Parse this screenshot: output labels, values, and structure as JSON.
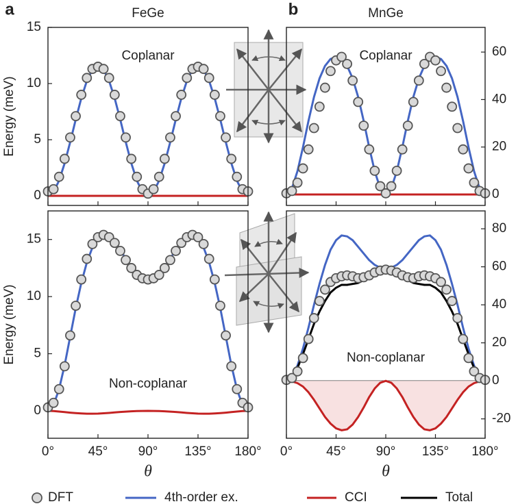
{
  "chart_data": [
    {
      "type": "line",
      "panel_label": "a",
      "title": "FeGe",
      "annotation": "Coplanar",
      "ylabel": "Energy (meV)",
      "y_axis_side": "left",
      "x": [
        0,
        5,
        10,
        15,
        20,
        25,
        30,
        35,
        40,
        45,
        50,
        55,
        60,
        65,
        70,
        75,
        80,
        85,
        90,
        95,
        100,
        105,
        110,
        115,
        120,
        125,
        130,
        135,
        140,
        145,
        150,
        155,
        160,
        165,
        170,
        175,
        180
      ],
      "xlim": [
        0,
        180
      ],
      "xticks": [
        0,
        45,
        90,
        135,
        180
      ],
      "ylim": [
        -0.85,
        15
      ],
      "yticks": [
        0,
        5,
        10,
        15
      ],
      "series": [
        {
          "name": "DFT",
          "color": "#d9d9d9",
          "edge_color": "#555555",
          "marker": "circle",
          "values": [
            0.4,
            0.6,
            1.7,
            3.3,
            5.2,
            7.1,
            9.0,
            10.5,
            11.3,
            11.5,
            11.3,
            10.5,
            9.0,
            7.1,
            5.2,
            3.3,
            1.7,
            0.6,
            0.2,
            0.6,
            1.7,
            3.3,
            5.2,
            7.1,
            9.0,
            10.5,
            11.3,
            11.5,
            11.3,
            10.5,
            9.0,
            7.1,
            5.2,
            3.3,
            1.7,
            0.6,
            0.4
          ]
        },
        {
          "name": "4th-order ex.",
          "color": "#4466c4",
          "values": [
            0,
            0.35,
            1.36,
            2.9,
            4.79,
            6.81,
            8.7,
            10.24,
            11.25,
            11.6,
            11.25,
            10.24,
            8.7,
            6.81,
            4.79,
            2.9,
            1.36,
            0.35,
            0,
            0.35,
            1.36,
            2.9,
            4.79,
            6.81,
            8.7,
            10.24,
            11.25,
            11.6,
            11.25,
            10.24,
            8.7,
            6.81,
            4.79,
            2.9,
            1.36,
            0.35,
            0
          ]
        },
        {
          "name": "CCI",
          "color": "#c42222",
          "values": [
            0,
            0,
            0,
            0,
            0,
            0,
            0,
            0,
            0,
            0,
            0,
            0,
            0,
            0,
            0,
            0,
            0,
            0,
            0,
            0,
            0,
            0,
            0,
            0,
            0,
            0,
            0,
            0,
            0,
            0,
            0,
            0,
            0,
            0,
            0,
            0,
            0
          ]
        }
      ]
    },
    {
      "type": "line",
      "panel_label": "b",
      "title": "MnGe",
      "annotation": "Coplanar",
      "y_axis_side": "right",
      "x": [
        0,
        5,
        10,
        15,
        20,
        25,
        30,
        35,
        40,
        45,
        50,
        55,
        60,
        65,
        70,
        75,
        80,
        85,
        90,
        95,
        100,
        105,
        110,
        115,
        120,
        125,
        130,
        135,
        140,
        145,
        150,
        155,
        160,
        165,
        170,
        175,
        180
      ],
      "xlim": [
        0,
        180
      ],
      "xticks": [
        0,
        45,
        90,
        135,
        180
      ],
      "ylim": [
        -4.6,
        70.4
      ],
      "yticks": [
        0,
        20,
        40,
        60
      ],
      "series": [
        {
          "name": "DFT",
          "color": "#d9d9d9",
          "edge_color": "#555555",
          "marker": "circle",
          "values": [
            0.5,
            1.5,
            5,
            11,
            19,
            28,
            37,
            45,
            52,
            56.5,
            58,
            55,
            48,
            39,
            29,
            19,
            10,
            3.5,
            0.5,
            3.5,
            10,
            19,
            29,
            39,
            48,
            55,
            58,
            56.5,
            52,
            45,
            37,
            28,
            19,
            11,
            5,
            1.5,
            0.5
          ]
        },
        {
          "name": "4th-order ex.",
          "color": "#4466c4",
          "values": [
            0,
            2.6,
            9.8,
            19.9,
            31,
            41.1,
            48.9,
            54.2,
            57.1,
            58,
            57.1,
            54.2,
            48.9,
            41.1,
            31,
            19.9,
            9.8,
            2.6,
            0,
            2.6,
            9.8,
            19.9,
            31,
            41.1,
            48.9,
            54.2,
            57.1,
            58,
            57.1,
            54.2,
            48.9,
            41.1,
            31,
            19.9,
            9.8,
            2.6,
            0
          ]
        },
        {
          "name": "CCI",
          "color": "#c42222",
          "values": [
            0,
            0,
            0,
            0,
            0,
            0,
            0,
            0,
            0,
            0,
            0,
            0,
            0,
            0,
            0,
            0,
            0,
            0,
            0,
            0,
            0,
            0,
            0,
            0,
            0,
            0,
            0,
            0,
            0,
            0,
            0,
            0,
            0,
            0,
            0,
            0,
            0
          ]
        }
      ]
    },
    {
      "type": "line",
      "annotation": "Non-coplanar",
      "ylabel": "Energy (meV)",
      "xlabel": "θ",
      "y_axis_side": "left",
      "x": [
        0,
        5,
        10,
        15,
        20,
        25,
        30,
        35,
        40,
        45,
        50,
        55,
        60,
        65,
        70,
        75,
        80,
        85,
        90,
        95,
        100,
        105,
        110,
        115,
        120,
        125,
        130,
        135,
        140,
        145,
        150,
        155,
        160,
        165,
        170,
        175,
        180
      ],
      "xlim": [
        0,
        180
      ],
      "xticks": [
        {
          "value": 0,
          "label": "0°"
        },
        {
          "value": 45,
          "label": "45°"
        },
        {
          "value": 90,
          "label": "90°"
        },
        {
          "value": 135,
          "label": "135°"
        },
        {
          "value": 180,
          "label": "180°"
        }
      ],
      "ylim": [
        -2.4,
        17.5
      ],
      "yticks": [
        0,
        5,
        10,
        15
      ],
      "series": [
        {
          "name": "DFT",
          "color": "#d9d9d9",
          "edge_color": "#555555",
          "marker": "circle",
          "values": [
            0.3,
            0.7,
            1.9,
            3.9,
            6.6,
            9.2,
            11.5,
            13.3,
            14.6,
            15.2,
            15.4,
            15.2,
            14.7,
            14.0,
            13.2,
            12.5,
            11.9,
            11.6,
            11.5,
            11.6,
            11.9,
            12.5,
            13.2,
            14.0,
            14.7,
            15.2,
            15.4,
            15.2,
            14.6,
            13.3,
            11.5,
            9.2,
            6.6,
            3.9,
            1.9,
            0.7,
            0.3
          ]
        },
        {
          "name": "4th-order ex.",
          "color": "#4466c4",
          "values": [
            0,
            0.5,
            1.9,
            4.0,
            6.5,
            9.0,
            11.2,
            13.0,
            14.3,
            15.1,
            15.4,
            15.3,
            14.8,
            14.1,
            13.3,
            12.6,
            12.0,
            11.7,
            11.6,
            11.7,
            12.0,
            12.6,
            13.3,
            14.1,
            14.8,
            15.3,
            15.4,
            15.1,
            14.3,
            13.0,
            11.2,
            9.0,
            6.5,
            4.0,
            1.9,
            0.5,
            0
          ]
        },
        {
          "name": "CCI",
          "color": "#c42222",
          "values": [
            0,
            -0.02,
            -0.06,
            -0.11,
            -0.16,
            -0.2,
            -0.23,
            -0.25,
            -0.25,
            -0.24,
            -0.21,
            -0.18,
            -0.14,
            -0.1,
            -0.07,
            -0.04,
            -0.02,
            -0.01,
            0,
            -0.01,
            -0.02,
            -0.04,
            -0.07,
            -0.1,
            -0.14,
            -0.18,
            -0.21,
            -0.24,
            -0.25,
            -0.25,
            -0.23,
            -0.2,
            -0.16,
            -0.11,
            -0.06,
            -0.02,
            0
          ]
        }
      ]
    },
    {
      "type": "line",
      "annotation": "Non-coplanar",
      "xlabel": "θ",
      "y_axis_side": "right",
      "zero_line": true,
      "x": [
        0,
        5,
        10,
        15,
        20,
        25,
        30,
        35,
        40,
        45,
        50,
        55,
        60,
        65,
        70,
        75,
        80,
        85,
        90,
        95,
        100,
        105,
        110,
        115,
        120,
        125,
        130,
        135,
        140,
        145,
        150,
        155,
        160,
        165,
        170,
        175,
        180
      ],
      "xlim": [
        0,
        180
      ],
      "xticks": [
        {
          "value": 0,
          "label": "0°"
        },
        {
          "value": 45,
          "label": "45°"
        },
        {
          "value": 90,
          "label": "90°"
        },
        {
          "value": 135,
          "label": "135°"
        },
        {
          "value": 180,
          "label": "180°"
        }
      ],
      "ylim": [
        -30.2,
        89.4
      ],
      "yticks": [
        -20,
        0,
        20,
        40,
        60,
        80
      ],
      "series": [
        {
          "name": "DFT",
          "color": "#d9d9d9",
          "edge_color": "#555555",
          "marker": "circle",
          "values": [
            0.5,
            1.5,
            5,
            12,
            22,
            33,
            42,
            48,
            52,
            54,
            55,
            55.5,
            55,
            54,
            54.5,
            55.5,
            57,
            58,
            58.5,
            58,
            57,
            55.5,
            54.5,
            54,
            55,
            55.5,
            55,
            54,
            52,
            48,
            42,
            33,
            22,
            12,
            5,
            1.5,
            0.5
          ]
        },
        {
          "name": "4th-order ex.",
          "color": "#4466c4",
          "values": [
            0,
            2,
            8,
            17,
            28,
            40,
            51,
            61,
            69,
            74,
            76.5,
            76,
            74,
            70.5,
            67,
            63.5,
            61,
            59.5,
            59,
            59.5,
            61,
            63.5,
            67,
            70.5,
            74,
            76,
            76.5,
            74,
            69,
            61,
            51,
            40,
            28,
            17,
            8,
            2,
            0
          ]
        },
        {
          "name": "CCI",
          "color": "#c42222",
          "fill": "#f8e1e1",
          "values": [
            0,
            -0.3,
            -1.2,
            -3,
            -6,
            -10,
            -14.5,
            -19,
            -22.5,
            -25,
            -26,
            -25.5,
            -23,
            -19,
            -14,
            -8.5,
            -4,
            -1,
            0,
            -1,
            -4,
            -8.5,
            -14,
            -19,
            -23,
            -25.5,
            -26,
            -25,
            -22.5,
            -19,
            -14.5,
            -10,
            -6,
            -3,
            -1.2,
            -0.3,
            0
          ]
        },
        {
          "name": "Total",
          "color": "#000000",
          "values": [
            0,
            1.7,
            6.8,
            14,
            22,
            30,
            36.5,
            42,
            46.5,
            49,
            50.5,
            50.5,
            51,
            51.5,
            53,
            55,
            57,
            58.5,
            59,
            58.5,
            57,
            55,
            53,
            51.5,
            51,
            50.5,
            50.5,
            49,
            46.5,
            42,
            36.5,
            30,
            22,
            14,
            6.8,
            1.7,
            0
          ]
        }
      ]
    }
  ]
}
